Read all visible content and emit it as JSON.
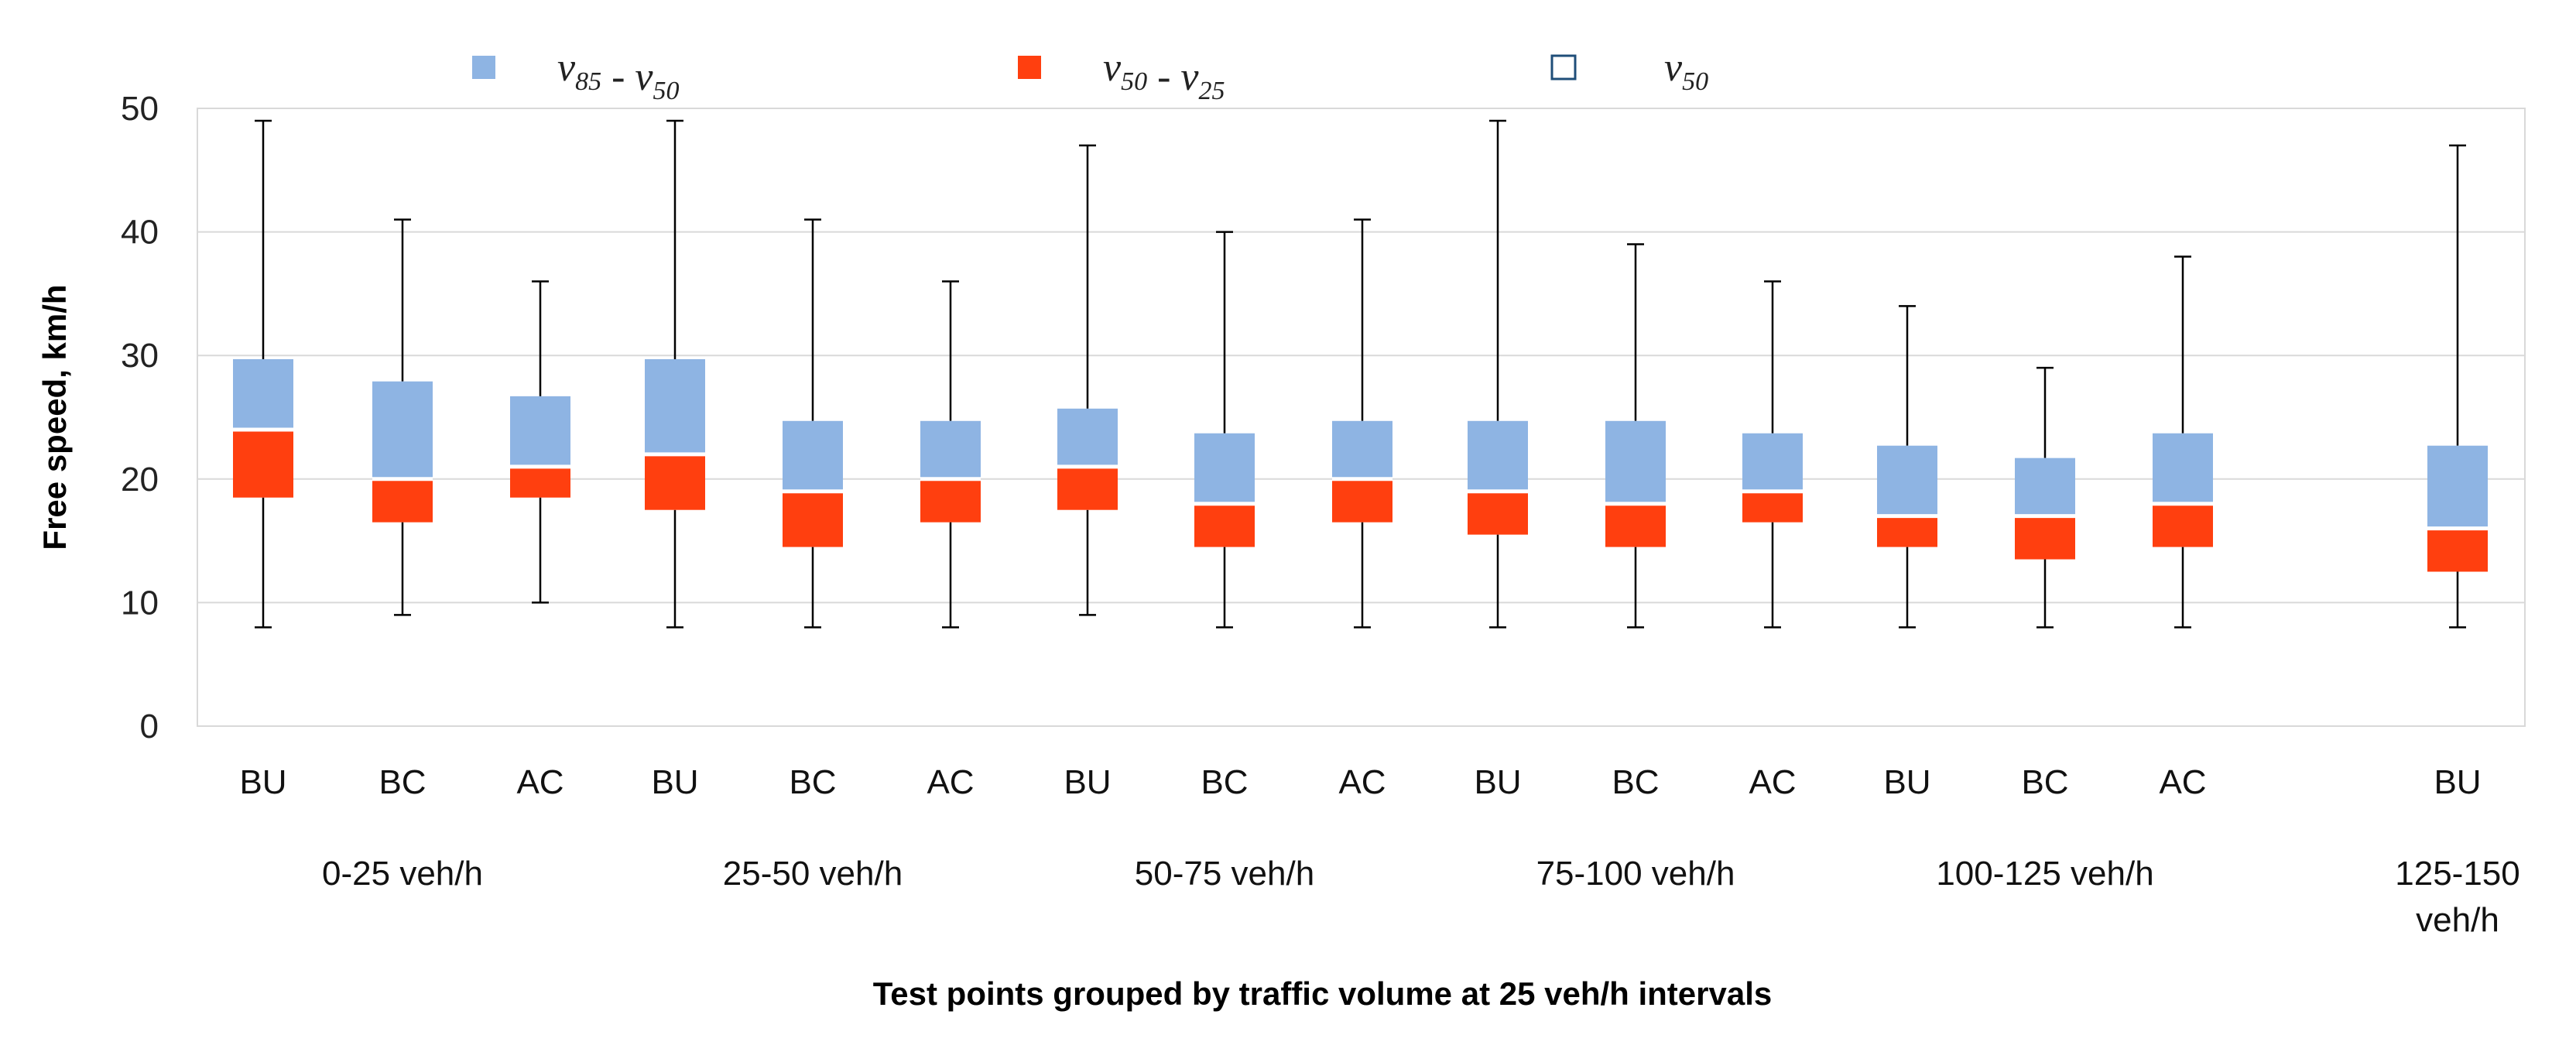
{
  "chart_data": {
    "type": "box",
    "title": "",
    "xlabel": "Test points grouped by traffic volume at 25 veh/h intervals",
    "ylabel": "Free speed, km/h",
    "ylim": [
      0,
      50
    ],
    "yticks": [
      0,
      10,
      20,
      30,
      40,
      50
    ],
    "grid": true,
    "legend_position": "top",
    "legend": [
      {
        "name": "v85 - v50",
        "color": "#8eb4e3"
      },
      {
        "name": "v50 - v25",
        "color": "#ff3f0f"
      },
      {
        "name": "v50",
        "color": "#ffffff"
      }
    ],
    "groups": [
      {
        "label": "0-25 veh/h",
        "categories": [
          "BU",
          "BC",
          "AC"
        ]
      },
      {
        "label": "25-50 veh/h",
        "categories": [
          "BU",
          "BC",
          "AC"
        ]
      },
      {
        "label": "50-75 veh/h",
        "categories": [
          "BU",
          "BC",
          "AC"
        ]
      },
      {
        "label": "75-100 veh/h",
        "categories": [
          "BU",
          "BC",
          "AC"
        ]
      },
      {
        "label": "100-125 veh/h",
        "categories": [
          "BU",
          "BC",
          "AC"
        ]
      },
      {
        "label": "125-150 veh/h",
        "categories": [
          "BU"
        ]
      }
    ],
    "boxes": [
      {
        "group": "0-25 veh/h",
        "category": "BU",
        "min": 8,
        "v25": 18.5,
        "v50": 24,
        "v85": 29.7,
        "max": 49
      },
      {
        "group": "0-25 veh/h",
        "category": "BC",
        "min": 9,
        "v25": 16.5,
        "v50": 20,
        "v85": 27.9,
        "max": 41
      },
      {
        "group": "0-25 veh/h",
        "category": "AC",
        "min": 10,
        "v25": 18.5,
        "v50": 21,
        "v85": 26.7,
        "max": 36
      },
      {
        "group": "25-50 veh/h",
        "category": "BU",
        "min": 8,
        "v25": 17.5,
        "v50": 22,
        "v85": 29.7,
        "max": 49
      },
      {
        "group": "25-50 veh/h",
        "category": "BC",
        "min": 8,
        "v25": 14.5,
        "v50": 19,
        "v85": 24.7,
        "max": 41
      },
      {
        "group": "25-50 veh/h",
        "category": "AC",
        "min": 8,
        "v25": 16.5,
        "v50": 20,
        "v85": 24.7,
        "max": 36
      },
      {
        "group": "50-75 veh/h",
        "category": "BU",
        "min": 9,
        "v25": 17.5,
        "v50": 21,
        "v85": 25.7,
        "max": 47
      },
      {
        "group": "50-75 veh/h",
        "category": "BC",
        "min": 8,
        "v25": 14.5,
        "v50": 18,
        "v85": 23.7,
        "max": 40
      },
      {
        "group": "50-75 veh/h",
        "category": "AC",
        "min": 8,
        "v25": 16.5,
        "v50": 20,
        "v85": 24.7,
        "max": 41
      },
      {
        "group": "75-100 veh/h",
        "category": "BU",
        "min": 8,
        "v25": 15.5,
        "v50": 19,
        "v85": 24.7,
        "max": 49
      },
      {
        "group": "75-100 veh/h",
        "category": "BC",
        "min": 8,
        "v25": 14.5,
        "v50": 18,
        "v85": 24.7,
        "max": 39
      },
      {
        "group": "75-100 veh/h",
        "category": "AC",
        "min": 8,
        "v25": 16.5,
        "v50": 19,
        "v85": 23.7,
        "max": 36
      },
      {
        "group": "100-125 veh/h",
        "category": "BU",
        "min": 8,
        "v25": 14.5,
        "v50": 17,
        "v85": 22.7,
        "max": 34
      },
      {
        "group": "100-125 veh/h",
        "category": "BC",
        "min": 8,
        "v25": 13.5,
        "v50": 17,
        "v85": 21.7,
        "max": 29
      },
      {
        "group": "100-125 veh/h",
        "category": "AC",
        "min": 8,
        "v25": 14.5,
        "v50": 18,
        "v85": 23.7,
        "max": 38
      },
      {
        "group": "125-150 veh/h",
        "category": "BU",
        "min": 8,
        "v25": 12.5,
        "v50": 16,
        "v85": 22.7,
        "max": 47
      }
    ]
  }
}
